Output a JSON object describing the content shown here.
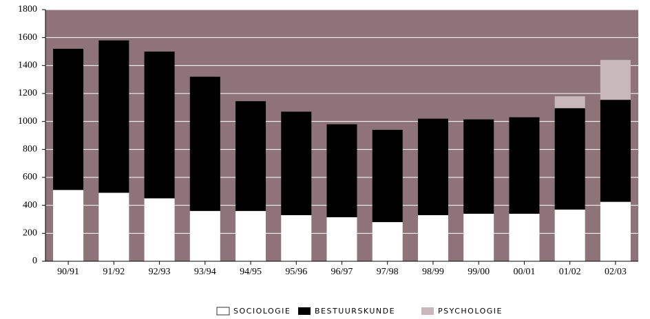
{
  "chart_data": {
    "type": "stacked_bar",
    "categories": [
      "90/91",
      "91/92",
      "92/93",
      "93/94",
      "94/95",
      "95/96",
      "96/97",
      "97/98",
      "98/99",
      "99/00",
      "00/01",
      "01/02",
      "02/03"
    ],
    "series": [
      {
        "name": "SOCIOLOGIE",
        "color": "#ffffff",
        "values": [
          510,
          490,
          450,
          360,
          360,
          330,
          315,
          280,
          330,
          340,
          340,
          370,
          425
        ]
      },
      {
        "name": "BESTUURSKUNDE",
        "color": "#000000",
        "values": [
          1010,
          1090,
          1050,
          960,
          785,
          740,
          665,
          660,
          690,
          675,
          690,
          725,
          730
        ]
      },
      {
        "name": "PSYCHOLOGIE",
        "color": "#c9b8bb",
        "values": [
          null,
          null,
          null,
          null,
          null,
          null,
          null,
          null,
          null,
          null,
          null,
          85,
          285
        ]
      }
    ],
    "ylim": [
      0,
      1800
    ],
    "yticks": [
      0,
      200,
      400,
      600,
      800,
      1000,
      1200,
      1400,
      1600,
      1800
    ],
    "grid": true,
    "plot_background": "#8e747a",
    "legend": "bottom"
  }
}
